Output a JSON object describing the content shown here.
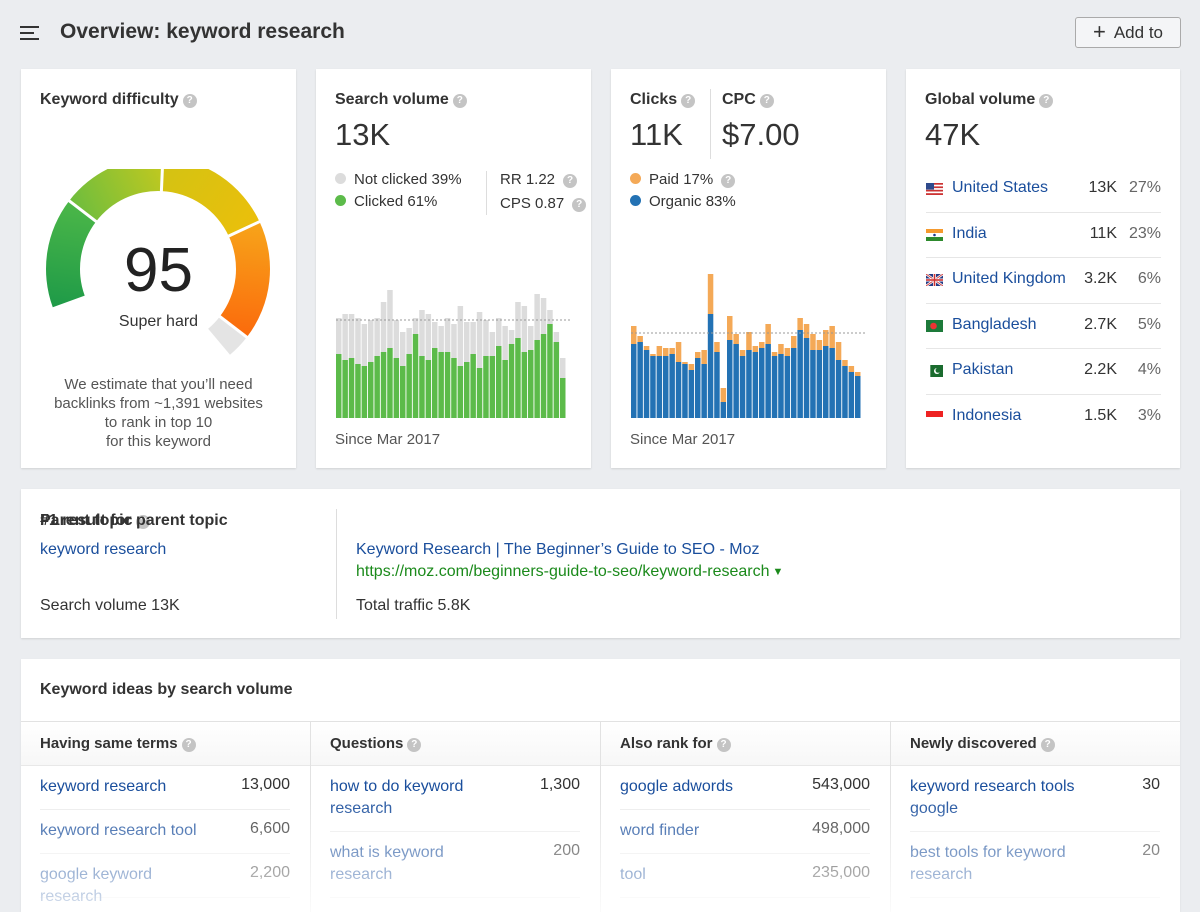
{
  "header": {
    "title": "Overview: keyword research",
    "add_label": "Add to"
  },
  "kd": {
    "title": "Keyword difficulty",
    "value": "95",
    "label": "Super hard",
    "desc_lines": [
      "We estimate that you’ll need",
      "backlinks from ~1,391 websites",
      "to rank in top 10",
      "for this keyword"
    ],
    "gauge_fraction": 0.95
  },
  "search_volume": {
    "title": "Search volume",
    "value": "13K",
    "not_clicked": "Not clicked 39%",
    "clicked": "Clicked 61%",
    "rr": "RR 1.22",
    "cps": "CPS 0.87",
    "since": "Since Mar 2017",
    "colors": {
      "clicked": "#5cbb4a",
      "not_clicked": "#dcdcdc"
    }
  },
  "clicks": {
    "title": "Clicks",
    "value": "11K",
    "cpc_title": "CPC",
    "cpc_value": "$7.00",
    "paid": "Paid 17%",
    "organic": "Organic 83%",
    "since": "Since Mar 2017",
    "colors": {
      "paid": "#f4a957",
      "organic": "#2372b4"
    }
  },
  "global": {
    "title": "Global volume",
    "value": "47K",
    "countries": [
      {
        "name": "United States",
        "volume": "13K",
        "pct": "27%",
        "flag": "us"
      },
      {
        "name": "India",
        "volume": "11K",
        "pct": "23%",
        "flag": "in"
      },
      {
        "name": "United Kingdom",
        "volume": "3.2K",
        "pct": "6%",
        "flag": "gb"
      },
      {
        "name": "Bangladesh",
        "volume": "2.7K",
        "pct": "5%",
        "flag": "bd"
      },
      {
        "name": "Pakistan",
        "volume": "2.2K",
        "pct": "4%",
        "flag": "pk"
      },
      {
        "name": "Indonesia",
        "volume": "1.5K",
        "pct": "3%",
        "flag": "id"
      }
    ]
  },
  "parent": {
    "title": "Parent topic",
    "topic": "keyword research",
    "search_volume": "Search volume 13K",
    "result_title": "#1 result for parent topic",
    "result_link": "Keyword Research | The Beginner’s Guide to SEO - Moz",
    "result_url": "https://moz.com/beginners-guide-to-seo/keyword-research",
    "caret": "▼",
    "total_traffic": "Total traffic 5.8K"
  },
  "ideas": {
    "title": "Keyword ideas by search volume",
    "columns": [
      {
        "header": "Having same terms",
        "rows": [
          {
            "keyword": "keyword research",
            "volume": "13,000"
          },
          {
            "keyword": "keyword research tool",
            "volume": "6,600"
          },
          {
            "keyword": "google keyword research",
            "volume": "2,200"
          }
        ]
      },
      {
        "header": "Questions",
        "rows": [
          {
            "keyword": "how to do keyword research",
            "volume": "1,300"
          },
          {
            "keyword": "what is keyword research",
            "volume": "200"
          }
        ]
      },
      {
        "header": "Also rank for",
        "rows": [
          {
            "keyword": "google adwords",
            "volume": "543,000"
          },
          {
            "keyword": "word finder",
            "volume": "498,000"
          },
          {
            "keyword": "tool",
            "volume": "235,000"
          }
        ]
      },
      {
        "header": "Newly discovered",
        "rows": [
          {
            "keyword": "keyword research tools google",
            "volume": "30"
          },
          {
            "keyword": "best tools for keyword research",
            "volume": "20"
          }
        ]
      }
    ]
  },
  "help_glyph": "?"
}
